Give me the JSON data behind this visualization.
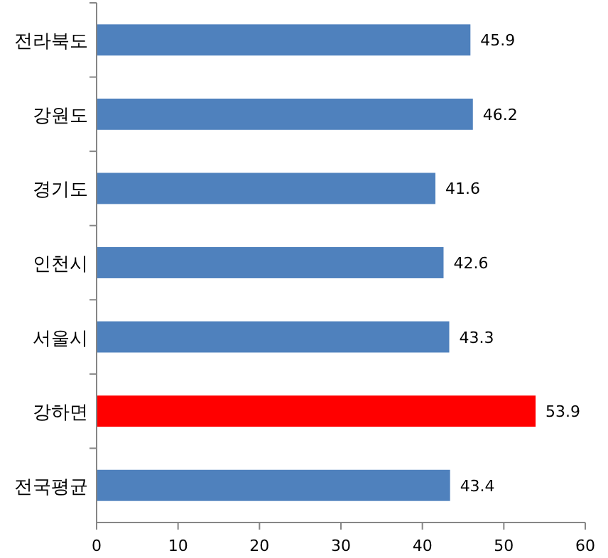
{
  "chart_data": {
    "type": "bar",
    "orientation": "horizontal",
    "categories": [
      "전라북도",
      "강원도",
      "경기도",
      "인천시",
      "서울시",
      "강하면",
      "전국평균"
    ],
    "values": [
      45.9,
      46.2,
      41.6,
      42.6,
      43.3,
      53.9,
      43.4
    ],
    "colors": [
      "#4f81bd",
      "#4f81bd",
      "#4f81bd",
      "#4f81bd",
      "#4f81bd",
      "#ff0000",
      "#4f81bd"
    ],
    "xlim": [
      0,
      60
    ],
    "xticks": [
      0,
      10,
      20,
      30,
      40,
      50,
      60
    ],
    "grid": false,
    "data_labels": true
  }
}
